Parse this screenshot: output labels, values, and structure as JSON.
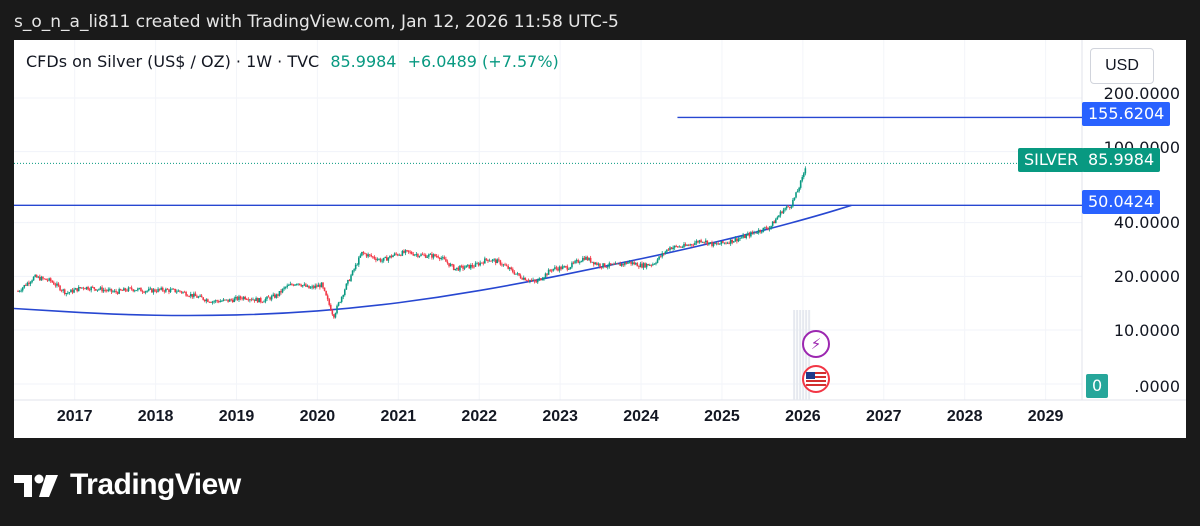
{
  "header": {
    "attribution": "s_o_n_a_li811 created with TradingView.com, Jan 12, 2026 11:58 UTC-5"
  },
  "legend": {
    "symbol": "CFDs on Silver (US$ / OZ) · 1W · TVC",
    "last": "85.9984",
    "change": "+6.0489 (+7.57%)"
  },
  "currency_button": "USD",
  "price_tags": {
    "resistance": "155.6204",
    "symbol_name": "SILVER",
    "last": "85.9984",
    "support": "50.0424",
    "zero": "0"
  },
  "zero_tick_rest": ".0000",
  "footer": {
    "brand": "TradingView"
  },
  "events": {
    "dividend_icon": "lightning-icon",
    "us_flag_icon": "us-flag-icon"
  },
  "colors": {
    "up": "#089981",
    "down": "#f23645",
    "line": "#2747d1",
    "tag_blue": "#2962ff",
    "tag_green": "#089981"
  },
  "chart_data": {
    "type": "candlestick",
    "scale": "log",
    "timeframe": "1W",
    "x_tick_labels": [
      "2017",
      "2018",
      "2019",
      "2020",
      "2021",
      "2022",
      "2023",
      "2024",
      "2025",
      "2026",
      "2027",
      "2028",
      "2029"
    ],
    "y_tick_labels": [
      "200.0000",
      "100.0000",
      "40.0000",
      "20.0000",
      "10.0000"
    ],
    "ylim": [
      5,
      230
    ],
    "xlim": [
      2016.25,
      2029.45
    ],
    "series": [
      {
        "kind": "price",
        "values": [
          [
            2016.3,
            16.5
          ],
          [
            2016.5,
            19.8
          ],
          [
            2016.7,
            18.9
          ],
          [
            2016.9,
            16.1
          ],
          [
            2017.1,
            17.4
          ],
          [
            2017.3,
            17.0
          ],
          [
            2017.5,
            16.3
          ],
          [
            2017.7,
            17.0
          ],
          [
            2017.9,
            16.6
          ],
          [
            2018.1,
            16.8
          ],
          [
            2018.3,
            16.5
          ],
          [
            2018.5,
            15.4
          ],
          [
            2018.7,
            14.5
          ],
          [
            2018.9,
            14.6
          ],
          [
            2019.1,
            15.3
          ],
          [
            2019.3,
            14.6
          ],
          [
            2019.5,
            15.6
          ],
          [
            2019.6,
            17.3
          ],
          [
            2019.75,
            18.5
          ],
          [
            2019.9,
            17.1
          ],
          [
            2020.05,
            17.9
          ],
          [
            2020.2,
            12.0
          ],
          [
            2020.35,
            17.5
          ],
          [
            2020.55,
            27.0
          ],
          [
            2020.65,
            26.0
          ],
          [
            2020.8,
            24.5
          ],
          [
            2020.95,
            26.4
          ],
          [
            2021.1,
            27.3
          ],
          [
            2021.3,
            26.2
          ],
          [
            2021.5,
            26.0
          ],
          [
            2021.7,
            22.0
          ],
          [
            2021.95,
            23.0
          ],
          [
            2022.1,
            25.0
          ],
          [
            2022.25,
            24.0
          ],
          [
            2022.5,
            20.0
          ],
          [
            2022.7,
            18.5
          ],
          [
            2022.9,
            22.0
          ],
          [
            2023.1,
            22.5
          ],
          [
            2023.3,
            25.5
          ],
          [
            2023.5,
            23.0
          ],
          [
            2023.7,
            23.0
          ],
          [
            2023.85,
            24.0
          ],
          [
            2024.0,
            23.0
          ],
          [
            2024.15,
            23.5
          ],
          [
            2024.35,
            29.0
          ],
          [
            2024.55,
            29.5
          ],
          [
            2024.75,
            32.0
          ],
          [
            2024.9,
            30.0
          ],
          [
            2025.05,
            31.0
          ],
          [
            2025.25,
            33.0
          ],
          [
            2025.45,
            36.0
          ],
          [
            2025.6,
            38.0
          ],
          [
            2025.75,
            47.0
          ],
          [
            2025.85,
            50.0
          ],
          [
            2025.92,
            58.0
          ],
          [
            2026.0,
            72.0
          ],
          [
            2026.04,
            86.0
          ]
        ]
      }
    ],
    "horizontal_lines": [
      {
        "value": 155.6204,
        "from_x": 2024.45
      },
      {
        "value": 50.0424,
        "from_x": 2016.25
      }
    ],
    "curve": [
      [
        2016.25,
        13.2
      ],
      [
        2017.5,
        12.2
      ],
      [
        2018.5,
        12.0
      ],
      [
        2019.5,
        12.3
      ],
      [
        2020.5,
        13.3
      ],
      [
        2021.5,
        15.2
      ],
      [
        2022.5,
        18.2
      ],
      [
        2023.5,
        22.5
      ],
      [
        2024.5,
        28.0
      ],
      [
        2025.5,
        36.0
      ],
      [
        2026.2,
        44.0
      ],
      [
        2026.6,
        50.0
      ]
    ],
    "last_price": 85.9984
  }
}
